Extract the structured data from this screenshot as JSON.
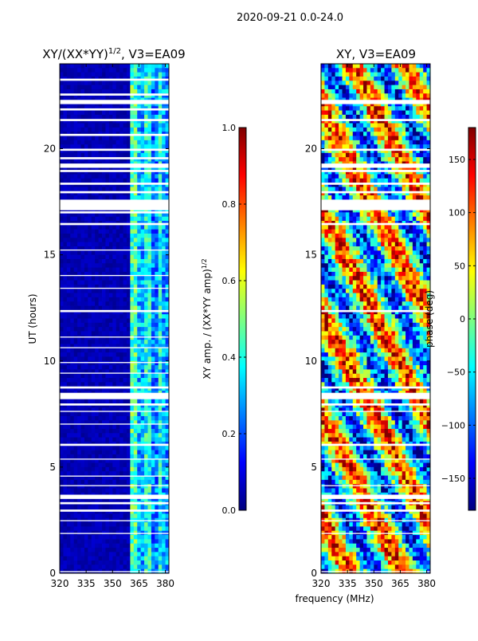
{
  "suptitle": "2020-09-21 0.0-24.0",
  "colors": {
    "jet": [
      "#00007f",
      "#0000ff",
      "#007fff",
      "#00ffff",
      "#7fff7f",
      "#ffff00",
      "#ff7f00",
      "#ff0000",
      "#7f0000"
    ],
    "background": "#ffffff",
    "gap": "#ffffff"
  },
  "chart_data": [
    {
      "type": "heatmap",
      "title_main": "XY/(XX*YY)",
      "title_sup": "1/2",
      "title_suffix": ", V3=EA09",
      "xlabel": "",
      "ylabel": "UT (hours)",
      "xlim": [
        320,
        382
      ],
      "ylim": [
        0,
        24
      ],
      "xticks": [
        320,
        335,
        350,
        365,
        380
      ],
      "yticks": [
        0,
        5,
        10,
        15,
        20
      ],
      "colorbar": {
        "label_main": "XY amp. / (XX*YY amp)",
        "label_sup": "1/2",
        "range": [
          0.0,
          1.0
        ],
        "ticks": [
          "0.0",
          "0.2",
          "0.4",
          "0.6",
          "0.8",
          "1.0"
        ]
      },
      "bands": [
        {
          "from": 320,
          "to": 361,
          "value": 0.05
        },
        {
          "from": 361,
          "to": 364,
          "value": 0.45
        },
        {
          "from": 364,
          "to": 368,
          "value": 0.3
        },
        {
          "from": 368,
          "to": 372,
          "value": 0.4
        },
        {
          "from": 372,
          "to": 376,
          "value": 0.25
        },
        {
          "from": 376,
          "to": 379,
          "value": 0.38
        },
        {
          "from": 379,
          "to": 382,
          "value": 0.28
        }
      ],
      "flag_gaps_hours": [
        [
          0.05,
          0.1
        ],
        [
          1.85,
          1.9
        ],
        [
          2.45,
          2.5
        ],
        [
          2.9,
          3.0
        ],
        [
          3.25,
          3.35
        ],
        [
          3.5,
          3.7
        ],
        [
          4.1,
          4.15
        ],
        [
          4.55,
          4.6
        ],
        [
          5.35,
          5.4
        ],
        [
          6.0,
          6.1
        ],
        [
          7.0,
          7.05
        ],
        [
          7.6,
          7.65
        ],
        [
          7.9,
          8.0
        ],
        [
          8.2,
          8.5
        ],
        [
          8.7,
          8.8
        ],
        [
          9.4,
          9.45
        ],
        [
          9.9,
          9.95
        ],
        [
          10.6,
          10.65
        ],
        [
          11.1,
          11.15
        ],
        [
          12.3,
          12.4
        ],
        [
          13.4,
          13.45
        ],
        [
          14.0,
          14.05
        ],
        [
          15.2,
          15.25
        ],
        [
          16.4,
          16.5
        ],
        [
          16.95,
          17.05
        ],
        [
          17.1,
          17.6
        ],
        [
          17.9,
          18.0
        ],
        [
          18.3,
          18.4
        ],
        [
          18.9,
          19.0
        ],
        [
          19.1,
          19.3
        ],
        [
          19.5,
          19.6
        ],
        [
          19.9,
          20.0
        ],
        [
          20.6,
          20.7
        ],
        [
          21.3,
          21.4
        ],
        [
          21.8,
          21.9
        ],
        [
          22.1,
          22.3
        ],
        [
          22.5,
          22.6
        ],
        [
          23.2,
          23.3
        ]
      ]
    },
    {
      "type": "heatmap",
      "title_main": "XY, V3=EA09",
      "xlabel": "frequency (MHz)",
      "ylabel": "",
      "xlim": [
        320,
        382
      ],
      "ylim": [
        0,
        24
      ],
      "xticks": [
        320,
        335,
        350,
        365,
        380
      ],
      "yticks": [
        0,
        5,
        10,
        15,
        20
      ],
      "colorbar": {
        "label_main": "phase (deg)",
        "range": [
          -180,
          180
        ],
        "ticks": [
          "−150",
          "−100",
          "−50",
          "0",
          "50",
          "100",
          "150"
        ]
      },
      "flag_gaps_hours": [
        [
          0.05,
          0.1
        ],
        [
          1.85,
          1.9
        ],
        [
          2.45,
          2.5
        ],
        [
          2.9,
          3.0
        ],
        [
          3.25,
          3.35
        ],
        [
          3.5,
          3.7
        ],
        [
          4.1,
          4.15
        ],
        [
          5.35,
          5.4
        ],
        [
          6.0,
          6.1
        ],
        [
          7.6,
          7.65
        ],
        [
          7.9,
          8.0
        ],
        [
          8.2,
          8.5
        ],
        [
          8.7,
          8.8
        ],
        [
          12.3,
          12.4
        ],
        [
          16.4,
          16.5
        ],
        [
          17.1,
          17.6
        ],
        [
          17.9,
          18.0
        ],
        [
          18.3,
          18.4
        ],
        [
          18.9,
          19.0
        ],
        [
          19.1,
          19.3
        ],
        [
          19.9,
          20.0
        ],
        [
          21.3,
          21.4
        ],
        [
          22.1,
          22.3
        ]
      ]
    }
  ]
}
